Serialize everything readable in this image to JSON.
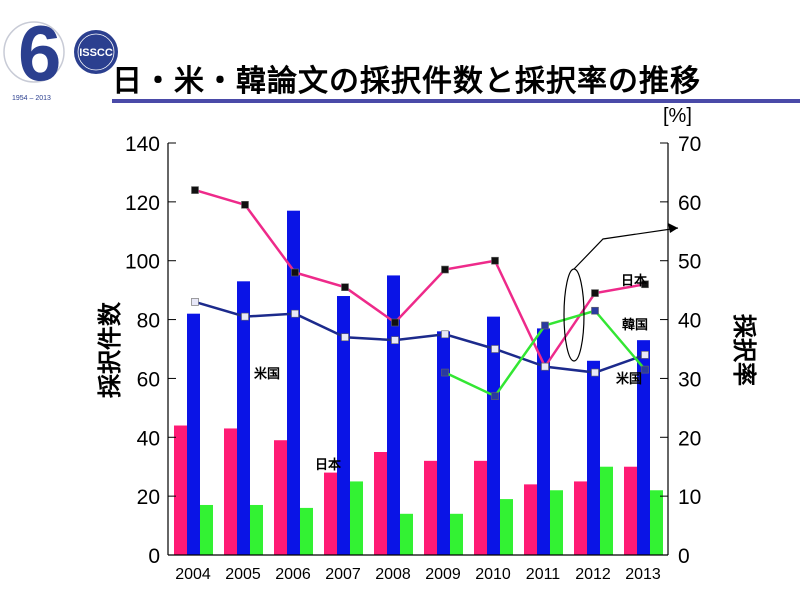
{
  "slide": {
    "title": "日・米・韓論文の採択件数と採択率の推移",
    "logo": {
      "number": "6",
      "badge_text": "ISSCC",
      "years": "1954 – 2013"
    }
  },
  "chart_data": {
    "type": "bar+line",
    "categories": [
      "2004",
      "2005",
      "2006",
      "2007",
      "2008",
      "2009",
      "2010",
      "2011",
      "2012",
      "2013"
    ],
    "ylabel_left": "採択件数",
    "ylabel_right": "採択率",
    "right_unit": "[%]",
    "ylim_left": [
      0,
      140
    ],
    "ylim_right": [
      0,
      70
    ],
    "yticks_left": [
      "0",
      "20",
      "40",
      "60",
      "80",
      "100",
      "120",
      "140"
    ],
    "yticks_right": [
      "0",
      "10",
      "20",
      "30",
      "40",
      "50",
      "60",
      "70"
    ],
    "bar_series": [
      {
        "name": "日本",
        "color": "#ff1a75",
        "values": [
          44,
          43,
          39,
          28,
          35,
          32,
          32,
          24,
          25,
          30
        ]
      },
      {
        "name": "米国",
        "color": "#0a14e6",
        "values": [
          82,
          93,
          117,
          88,
          95,
          76,
          81,
          77,
          66,
          73
        ]
      },
      {
        "name": "韓国",
        "color": "#33f233",
        "values": [
          17,
          17,
          16,
          25,
          14,
          14,
          19,
          22,
          30,
          22
        ]
      }
    ],
    "line_series": [
      {
        "name": "日本",
        "color": "#ee2a8a",
        "marker": "#111111",
        "values": [
          62,
          59.5,
          48,
          45.5,
          39.5,
          48.5,
          50,
          32,
          44.5,
          46
        ]
      },
      {
        "name": "米国",
        "color": "#1c2a8c",
        "marker": "#e8e8f8",
        "values": [
          43,
          40.5,
          41,
          37,
          36.5,
          37.5,
          35,
          32,
          31,
          34
        ]
      },
      {
        "name": "韓国",
        "color": "#33e633",
        "marker": "#2a3aa0",
        "values": [
          null,
          null,
          null,
          null,
          null,
          31,
          27,
          39,
          41.5,
          31.5
        ]
      }
    ],
    "annotations": [
      "米国",
      "日本",
      "日本",
      "韓国",
      "米国"
    ]
  }
}
